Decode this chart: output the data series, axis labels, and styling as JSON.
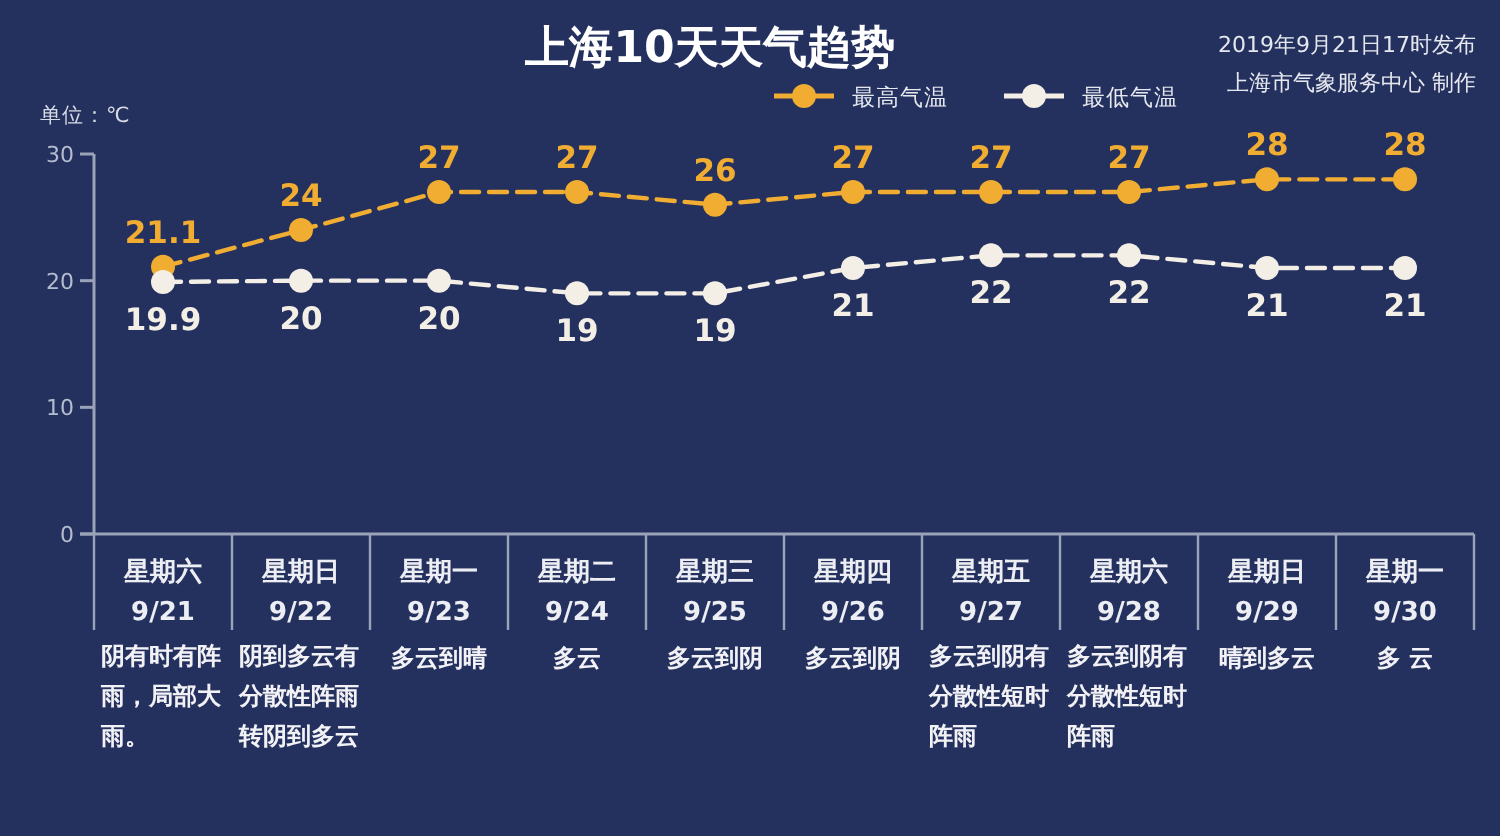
{
  "chart_data": {
    "type": "line",
    "title": "上海10天天气趋势",
    "ylabel": "单位：℃",
    "categories": [
      "星期六\n9/21",
      "星期日\n9/22",
      "星期一\n9/23",
      "星期二\n9/24",
      "星期三\n9/25",
      "星期四\n9/26",
      "星期五\n9/27",
      "星期六\n9/28",
      "星期日\n9/29",
      "星期一\n9/30"
    ],
    "series": [
      {
        "name": "最高气温",
        "color": "#f0ad32",
        "values": [
          21.1,
          24,
          27,
          27,
          26,
          27,
          27,
          27,
          28,
          28
        ]
      },
      {
        "name": "最低气温",
        "color": "#f3efe6",
        "values": [
          19.9,
          20,
          20,
          19,
          19,
          21,
          22,
          22,
          21,
          21
        ]
      }
    ],
    "ylim": [
      0,
      30
    ],
    "yticks": [
      0,
      10,
      20,
      30
    ],
    "grid": false,
    "data_labels": true,
    "legend": "top right",
    "marker": "circle",
    "line_style": "dashed",
    "annotations": [
      "2019年9月21日17时发布",
      "上海市气象服务中心 制作",
      "阴有时有阵雨，局部大雨。",
      "阴到多云有分散性阵雨转阴到多云",
      "多云到晴",
      "多云",
      "多云到阴",
      "多云到阴",
      "多云到阴有分散性短时阵雨",
      "多云到阴有分散性短时阵雨",
      "晴到多云",
      "多 云"
    ]
  }
}
